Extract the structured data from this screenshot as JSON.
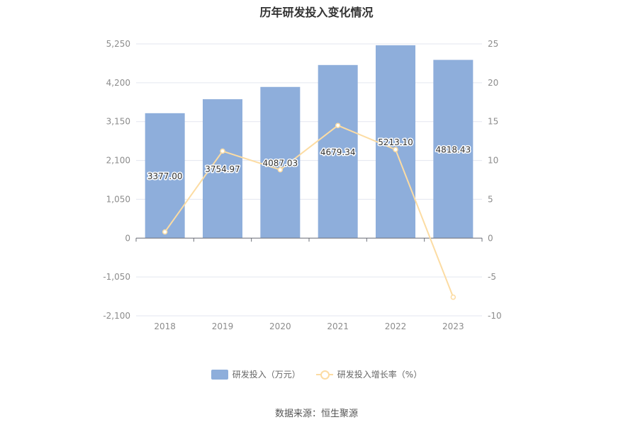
{
  "chart_data": {
    "type": "bar",
    "title": "历年研发投入变化情况",
    "categories": [
      "2018",
      "2019",
      "2020",
      "2021",
      "2022",
      "2023"
    ],
    "series": [
      {
        "name": "研发投入（万元）",
        "type": "bar",
        "axis": "left",
        "values": [
          3377.0,
          3754.97,
          4087.03,
          4679.34,
          5213.1,
          4818.43
        ],
        "labels": [
          "3377.00",
          "3754.97",
          "4087.03",
          "4679.34",
          "5213.10",
          "4818.43"
        ]
      },
      {
        "name": "研发投入增长率（%）",
        "type": "line",
        "axis": "right",
        "values": [
          0.8,
          11.2,
          8.8,
          14.5,
          11.4,
          -7.6
        ]
      }
    ],
    "y_left": {
      "min": -2100,
      "max": 5250,
      "ticks": [
        -2100,
        -1050,
        0,
        1050,
        2100,
        3150,
        4200,
        5250
      ],
      "tick_labels": [
        "-2,100",
        "-1,050",
        "0",
        "1,050",
        "2,100",
        "3,150",
        "4,200",
        "5,250"
      ]
    },
    "y_right": {
      "min": -10,
      "max": 25,
      "ticks": [
        -10,
        -5,
        0,
        5,
        10,
        15,
        20,
        25
      ],
      "tick_labels": [
        "-10",
        "-5",
        "0",
        "5",
        "10",
        "15",
        "20",
        "25"
      ]
    },
    "grid": true,
    "legend_position": "bottom",
    "colors": {
      "bar": "#8eaedb",
      "line": "#fcdca3",
      "grid": "#e3e6ef",
      "axis": "#6e7079",
      "tick_text": "#8c8c8c"
    }
  },
  "source_text": "数据来源：恒生聚源"
}
